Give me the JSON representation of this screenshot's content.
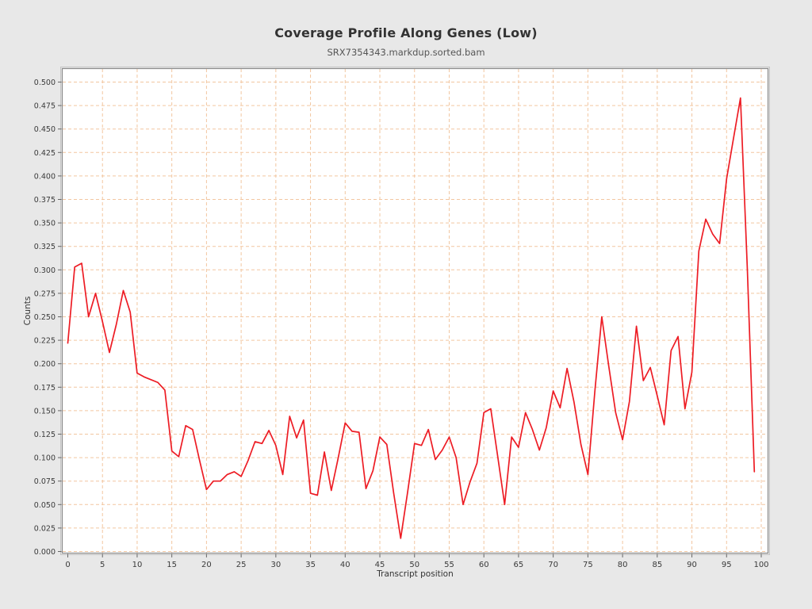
{
  "page": {
    "background": "#e8e8e8"
  },
  "chart": {
    "title": "Coverage Profile Along Genes (Low)",
    "subtitle": "SRX7354343.markdup.sorted.bam"
  },
  "chart_data": {
    "type": "line",
    "title": "Coverage Profile Along Genes (Low)",
    "subtitle": "SRX7354343.markdup.sorted.bam",
    "xlabel": "Transcript position",
    "ylabel": "Counts",
    "xlim": [
      0,
      100
    ],
    "ylim": [
      0.0,
      0.5
    ],
    "x_tick_step": 5,
    "y_tick_step": 0.025,
    "grid": true,
    "grid_style": "dashed",
    "legend_position": "none",
    "colors": {
      "line": "#ed1c24",
      "grid": "#f2c6a0",
      "plot_background": "#ffffff",
      "page_background": "#e8e8e8",
      "frame_dark": "#8a8a8a",
      "frame_light": "#c4c4c4",
      "tick": "#666666",
      "tick_label": "#3a3a3a",
      "axis_title": "#333333"
    },
    "x": [
      0,
      1,
      2,
      3,
      4,
      5,
      6,
      7,
      8,
      9,
      10,
      11,
      12,
      13,
      14,
      15,
      16,
      17,
      18,
      19,
      20,
      21,
      22,
      23,
      24,
      25,
      26,
      27,
      28,
      29,
      30,
      31,
      32,
      33,
      34,
      35,
      36,
      37,
      38,
      39,
      40,
      41,
      42,
      43,
      44,
      45,
      46,
      47,
      48,
      49,
      50,
      51,
      52,
      53,
      54,
      55,
      56,
      57,
      58,
      59,
      60,
      61,
      62,
      63,
      64,
      65,
      66,
      67,
      68,
      69,
      70,
      71,
      72,
      73,
      74,
      75,
      76,
      77,
      78,
      79,
      80,
      81,
      82,
      83,
      84,
      85,
      86,
      87,
      88,
      89,
      90,
      91,
      92,
      93,
      94,
      95,
      96,
      97,
      98,
      99
    ],
    "values": [
      0.222,
      0.303,
      0.307,
      0.25,
      0.275,
      0.245,
      0.212,
      0.242,
      0.278,
      0.255,
      0.19,
      0.186,
      0.183,
      0.18,
      0.172,
      0.107,
      0.101,
      0.134,
      0.13,
      0.097,
      0.066,
      0.075,
      0.075,
      0.082,
      0.085,
      0.08,
      0.097,
      0.117,
      0.115,
      0.129,
      0.113,
      0.082,
      0.144,
      0.121,
      0.14,
      0.062,
      0.06,
      0.106,
      0.065,
      0.1,
      0.137,
      0.128,
      0.127,
      0.067,
      0.086,
      0.122,
      0.114,
      0.062,
      0.014,
      0.063,
      0.115,
      0.113,
      0.13,
      0.098,
      0.108,
      0.122,
      0.1,
      0.05,
      0.074,
      0.094,
      0.148,
      0.152,
      0.101,
      0.05,
      0.122,
      0.111,
      0.148,
      0.13,
      0.108,
      0.132,
      0.171,
      0.153,
      0.195,
      0.159,
      0.114,
      0.082,
      0.17,
      0.25,
      0.198,
      0.148,
      0.119,
      0.16,
      0.24,
      0.182,
      0.196,
      0.166,
      0.135,
      0.214,
      0.229,
      0.152,
      0.191,
      0.32,
      0.354,
      0.338,
      0.328,
      0.397,
      0.44,
      0.483,
      0.3,
      0.085
    ]
  }
}
